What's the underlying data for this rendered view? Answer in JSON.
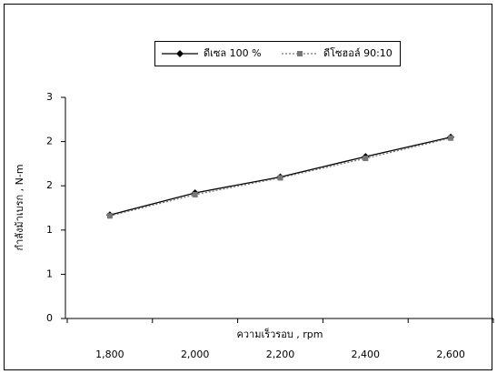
{
  "chart_data": {
    "type": "line",
    "x_label": "ความเร็วรอบ , rpm",
    "y_label": "กำลังม้าเบรก , N-m",
    "categories": [
      "1,800",
      "2,000",
      "2,200",
      "2,400",
      "2,600"
    ],
    "series": [
      {
        "name": "ดีเซล 100 %",
        "color": "#000000",
        "line_style": "solid",
        "marker": "diamond",
        "values": [
          1.17,
          1.42,
          1.6,
          1.83,
          2.05
        ]
      },
      {
        "name": "ดีโซฮอล์ 90:10",
        "color": "#777777",
        "line_style": "dotted",
        "marker": "square",
        "values": [
          1.16,
          1.4,
          1.59,
          1.81,
          2.04
        ]
      }
    ],
    "ylim": [
      0,
      2.5
    ],
    "yticks": [
      0,
      {
        "value": 0.5,
        "label": "1"
      },
      1,
      {
        "value": 1.5,
        "label": "2"
      },
      2,
      {
        "value": 2.5,
        "label": "3"
      }
    ],
    "grid": false,
    "legend": "top"
  }
}
